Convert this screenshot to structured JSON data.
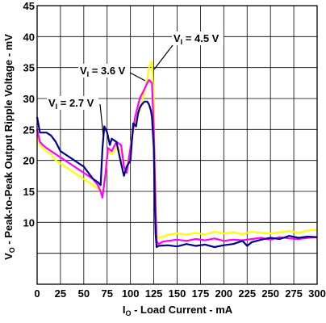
{
  "chart_data": {
    "type": "line",
    "xlabel": {
      "main": "I",
      "sub": "O",
      "rest": " - Load Current - mA"
    },
    "ylabel": {
      "main": "V",
      "sub": "O",
      "rest": " - Peak-to-Peak Output Ripple Voltage - mV"
    },
    "xlim": [
      0,
      300
    ],
    "ylim": [
      0,
      45
    ],
    "xticks": [
      0,
      25,
      50,
      75,
      100,
      125,
      150,
      175,
      200,
      225,
      250,
      275,
      300
    ],
    "yticks": [
      10,
      15,
      20,
      25,
      30,
      35,
      40,
      45
    ],
    "grid": true,
    "annotations": [
      {
        "main": "V",
        "sub": "I",
        "rest": " = 2.7 V",
        "series": "blue"
      },
      {
        "main": "V",
        "sub": "I",
        "rest": " = 3.6 V",
        "series": "magenta"
      },
      {
        "main": "V",
        "sub": "I",
        "rest": " = 4.5 V",
        "series": "yellow"
      }
    ],
    "series": [
      {
        "color": "#ffff00",
        "x": [
          0,
          3,
          6,
          10,
          15,
          20,
          25,
          30,
          35,
          40,
          45,
          50,
          55,
          60,
          65,
          68,
          70,
          73,
          76,
          80,
          85,
          90,
          93,
          96,
          100,
          105,
          110,
          115,
          118,
          120,
          123,
          125,
          127,
          128,
          130,
          135,
          140,
          150,
          160,
          170,
          180,
          190,
          200,
          210,
          220,
          230,
          240,
          250,
          260,
          270,
          280,
          290,
          300
        ],
        "y": [
          24,
          22.5,
          22,
          21.5,
          21,
          20,
          19.5,
          19,
          18.5,
          18,
          17.5,
          17,
          16.5,
          16,
          15.5,
          15,
          14.5,
          17,
          21.5,
          21,
          22,
          21.5,
          18.8,
          18.5,
          22.5,
          26,
          28,
          31,
          33,
          35,
          36,
          30,
          14,
          8,
          7.5,
          7.7,
          8,
          8.2,
          8,
          8.3,
          8,
          8.5,
          8.2,
          8.4,
          8.1,
          8.5,
          8.3,
          8.2,
          8.4,
          8.6,
          8.3,
          8.7,
          8.8
        ]
      },
      {
        "color": "#ff00ff",
        "x": [
          0,
          3,
          6,
          10,
          15,
          20,
          25,
          30,
          35,
          40,
          45,
          50,
          55,
          60,
          65,
          68,
          70,
          73,
          76,
          80,
          85,
          90,
          93,
          96,
          100,
          105,
          110,
          115,
          118,
          120,
          123,
          125,
          127,
          128,
          130,
          135,
          140,
          150,
          160,
          170,
          180,
          190,
          200,
          210,
          220,
          230,
          240,
          250,
          260,
          270,
          280,
          290,
          300
        ],
        "y": [
          25,
          23,
          22.5,
          22,
          21.5,
          21,
          20.5,
          20,
          19.5,
          19,
          18.5,
          18,
          17.5,
          17,
          16,
          15,
          14,
          17.5,
          22,
          21.5,
          23,
          22.5,
          19,
          18,
          22,
          27,
          30,
          31.5,
          32.5,
          33,
          32.5,
          25,
          12,
          7,
          6.5,
          6.9,
          7,
          7.2,
          7,
          7.3,
          7.1,
          7.4,
          7,
          7.2,
          7.1,
          7.3,
          7.5,
          7.2,
          7.6,
          7.4,
          7.3,
          7.5,
          7.6
        ]
      },
      {
        "color": "#00008b",
        "x": [
          0,
          3,
          6,
          10,
          15,
          20,
          25,
          30,
          35,
          40,
          45,
          50,
          55,
          60,
          65,
          68,
          70,
          72,
          75,
          78,
          80,
          85,
          90,
          93,
          96,
          100,
          103,
          106,
          108,
          110,
          112,
          115,
          118,
          120,
          122,
          123,
          125,
          126,
          127,
          128,
          130,
          140,
          150,
          160,
          170,
          180,
          190,
          200,
          210,
          220,
          225,
          230,
          240,
          250,
          260,
          270,
          280,
          290,
          300
        ],
        "y": [
          27,
          24.5,
          24.5,
          24.5,
          24,
          23,
          21.5,
          21,
          20.5,
          20,
          19.5,
          19,
          18,
          17,
          16.5,
          16,
          22,
          25.5,
          24.5,
          22.5,
          23.5,
          23,
          19.5,
          17.5,
          19,
          20,
          26,
          25.5,
          27.5,
          28.5,
          29,
          29.5,
          29.5,
          29,
          28,
          27,
          22,
          14,
          8,
          6,
          6.2,
          6.3,
          6.1,
          6.5,
          6.2,
          6.4,
          6,
          6.3,
          6.5,
          7,
          6.2,
          6.8,
          7.2,
          7.5,
          7.3,
          7.8,
          7.5,
          7.7,
          7.6
        ]
      }
    ]
  }
}
